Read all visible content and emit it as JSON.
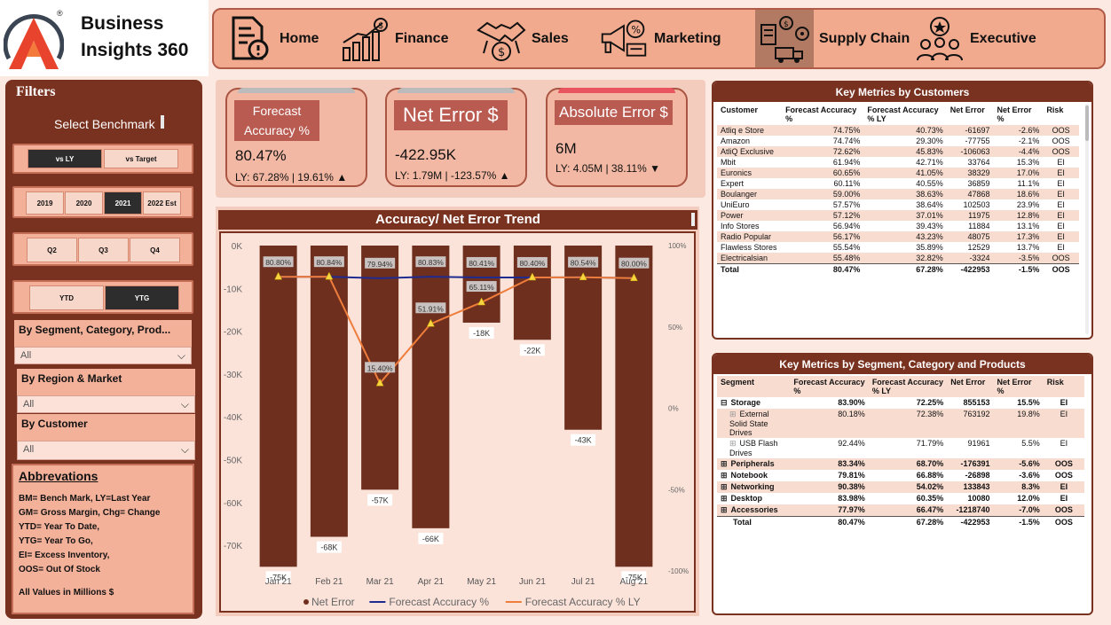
{
  "brand": {
    "line1": "Business",
    "line2": "Insights 360",
    "reg": "®"
  },
  "nav": [
    {
      "label": "Home",
      "icon": "report-icon"
    },
    {
      "label": "Finance",
      "icon": "finance-chart-icon"
    },
    {
      "label": "Sales",
      "icon": "handshake-icon"
    },
    {
      "label": "Marketing",
      "icon": "megaphone-icon"
    },
    {
      "label": "Supply Chain",
      "icon": "supply-chain-icon",
      "active": true
    },
    {
      "label": "Executive",
      "icon": "team-icon"
    }
  ],
  "filters": {
    "title": "Filters",
    "benchmark_label": "Select Benchmark",
    "bench_options": [
      "vs LY",
      "vs Target"
    ],
    "bench_selected": "vs LY",
    "years": [
      "2019",
      "2020",
      "2021",
      "2022 Est"
    ],
    "year_selected": "2021",
    "quarters": [
      "Q2",
      "Q3",
      "Q4"
    ],
    "periods": [
      "YTD",
      "YTG"
    ],
    "period_selected": "YTG",
    "dropdowns": [
      {
        "title": "By Segment, Category, Prod...",
        "value": "All"
      },
      {
        "title": "By Region & Market",
        "value": "All"
      },
      {
        "title": "By Customer",
        "value": "All"
      }
    ]
  },
  "abbreviations": {
    "title": "Abbrevations",
    "lines": [
      "BM= Bench Mark, LY=Last Year",
      "GM= Gross Margin, Chg= Change",
      "YTD= Year To Date,",
      "YTG= Year To Go,",
      "EI= Excess Inventory,",
      "OOS= Out Of Stock"
    ],
    "footer": "All Values in Millions $"
  },
  "kpis": [
    {
      "title": "Forecast Accuracy %",
      "value": "80.47%",
      "ly": "LY: 67.28% | 19.61%",
      "arrow": "▲",
      "strip": "#bbbbbb"
    },
    {
      "title": "Net Error $",
      "value": "-422.95K",
      "ly": "LY: 1.79M | -123.57%",
      "arrow": "▲",
      "strip": "#bbbbbb"
    },
    {
      "title": "Absolute Error $",
      "value": "6M",
      "ly": "LY: 4.05M | 38.11%",
      "arrow": "▼",
      "strip": "#e85560"
    }
  ],
  "chart_data": {
    "type": "bar",
    "title": "Accuracy/ Net Error Trend",
    "categories": [
      "Jan 21",
      "Feb 21",
      "Mar 21",
      "Apr 21",
      "May 21",
      "Jun 21",
      "Jul 21",
      "Aug 21"
    ],
    "ylim": [
      -75,
      0
    ],
    "y_ticks": [
      "0K",
      "-10K",
      "-20K",
      "-30K",
      "-40K",
      "-50K",
      "-60K",
      "-70K"
    ],
    "y2_ticks": [
      "100%",
      "50%",
      "0%",
      "-50%",
      "-100%"
    ],
    "y2lim": [
      -100,
      100
    ],
    "series": [
      {
        "name": "Net Error",
        "kind": "bar",
        "color": "#6e2f1e",
        "values": [
          -75,
          -68,
          -57,
          -66,
          -18,
          -22,
          -43,
          -75
        ],
        "labels": [
          "-75K",
          "-68K",
          "-57K",
          "-66K",
          "-18K",
          "-22K",
          "-43K",
          "-75K"
        ]
      },
      {
        "name": "Forecast Accuracy %",
        "kind": "line",
        "color": "#1f2b8f",
        "values": [
          80.8,
          80.84,
          79.94,
          80.83,
          80.41,
          80.4,
          80.54,
          80.0
        ],
        "labels": [
          "80.80%",
          "80.84%",
          "79.94%",
          "80.83%",
          "80.41%",
          "80.40%",
          "80.54%",
          "80.00%"
        ]
      },
      {
        "name": "Forecast Accuracy % LY",
        "kind": "line",
        "color": "#ef7d3c",
        "values": [
          80.8,
          80.84,
          15.4,
          51.91,
          65.11,
          80.4,
          80.54,
          80.0
        ],
        "labels": [
          "",
          "",
          "15.40%",
          "51.91%",
          "65.11%",
          "",
          "",
          ""
        ]
      }
    ]
  },
  "customers": {
    "title": "Key Metrics by Customers",
    "headers": [
      "Customer",
      "Forecast Accuracy %",
      "Forecast Accuracy % LY",
      "Net Error",
      "Net Error %",
      "Risk"
    ],
    "rows": [
      [
        "Atliq e Store",
        "74.75%",
        "40.73%",
        "-61697",
        "-2.6%",
        "OOS"
      ],
      [
        "Amazon",
        "74.74%",
        "29.30%",
        "-77755",
        "-2.1%",
        "OOS"
      ],
      [
        "AtliQ Exclusive",
        "72.62%",
        "45.83%",
        "-106063",
        "-4.4%",
        "OOS"
      ],
      [
        "Mbit",
        "61.94%",
        "42.71%",
        "33764",
        "15.3%",
        "EI"
      ],
      [
        "Euronics",
        "60.65%",
        "41.05%",
        "38329",
        "17.0%",
        "EI"
      ],
      [
        "Expert",
        "60.11%",
        "40.55%",
        "36859",
        "11.1%",
        "EI"
      ],
      [
        "Boulanger",
        "59.00%",
        "38.63%",
        "47868",
        "18.6%",
        "EI"
      ],
      [
        "UniEuro",
        "57.57%",
        "38.64%",
        "102503",
        "23.9%",
        "EI"
      ],
      [
        "Power",
        "57.12%",
        "37.01%",
        "11975",
        "12.8%",
        "EI"
      ],
      [
        "Info Stores",
        "56.94%",
        "39.43%",
        "11884",
        "13.1%",
        "EI"
      ],
      [
        "Radio Popular",
        "56.17%",
        "43.23%",
        "48075",
        "17.3%",
        "EI"
      ],
      [
        "Flawless Stores",
        "55.54%",
        "35.89%",
        "12529",
        "13.7%",
        "EI"
      ],
      [
        "Electricalsian",
        "55.48%",
        "32.82%",
        "-3324",
        "-3.5%",
        "OOS"
      ]
    ],
    "total": [
      "Total",
      "80.47%",
      "67.28%",
      "-422953",
      "-1.5%",
      "OOS"
    ]
  },
  "segments": {
    "title": "Key Metrics by Segment, Category and Products",
    "headers": [
      "Segment",
      "Forecast Accuracy %",
      "Forecast Accuracy % LY",
      "Net Error",
      "Net Error %",
      "Risk"
    ],
    "rows": [
      {
        "name": "Storage",
        "toggle": "⊟",
        "level": 0,
        "cells": [
          "83.90%",
          "72.25%",
          "855153",
          "15.5%",
          "EI"
        ]
      },
      {
        "name": "External Solid State Drives",
        "toggle": "⊞",
        "level": 1,
        "cells": [
          "80.18%",
          "72.38%",
          "763192",
          "19.8%",
          "EI"
        ]
      },
      {
        "name": "USB Flash Drives",
        "toggle": "⊞",
        "level": 1,
        "cells": [
          "92.44%",
          "71.79%",
          "91961",
          "5.5%",
          "EI"
        ]
      },
      {
        "name": "Peripherals",
        "toggle": "⊞",
        "level": 0,
        "cells": [
          "83.34%",
          "68.70%",
          "-176391",
          "-5.6%",
          "OOS"
        ]
      },
      {
        "name": "Notebook",
        "toggle": "⊞",
        "level": 0,
        "cells": [
          "79.81%",
          "66.88%",
          "-26898",
          "-3.6%",
          "OOS"
        ]
      },
      {
        "name": "Networking",
        "toggle": "⊞",
        "level": 0,
        "cells": [
          "90.38%",
          "54.02%",
          "133843",
          "8.3%",
          "EI"
        ]
      },
      {
        "name": "Desktop",
        "toggle": "⊞",
        "level": 0,
        "cells": [
          "83.98%",
          "60.35%",
          "10080",
          "12.0%",
          "EI"
        ]
      },
      {
        "name": "Accessories",
        "toggle": "⊞",
        "level": 0,
        "cells": [
          "77.97%",
          "66.47%",
          "-1218740",
          "-7.0%",
          "OOS"
        ]
      }
    ],
    "total": [
      "Total",
      "80.47%",
      "67.28%",
      "-422953",
      "-1.5%",
      "OOS"
    ]
  }
}
